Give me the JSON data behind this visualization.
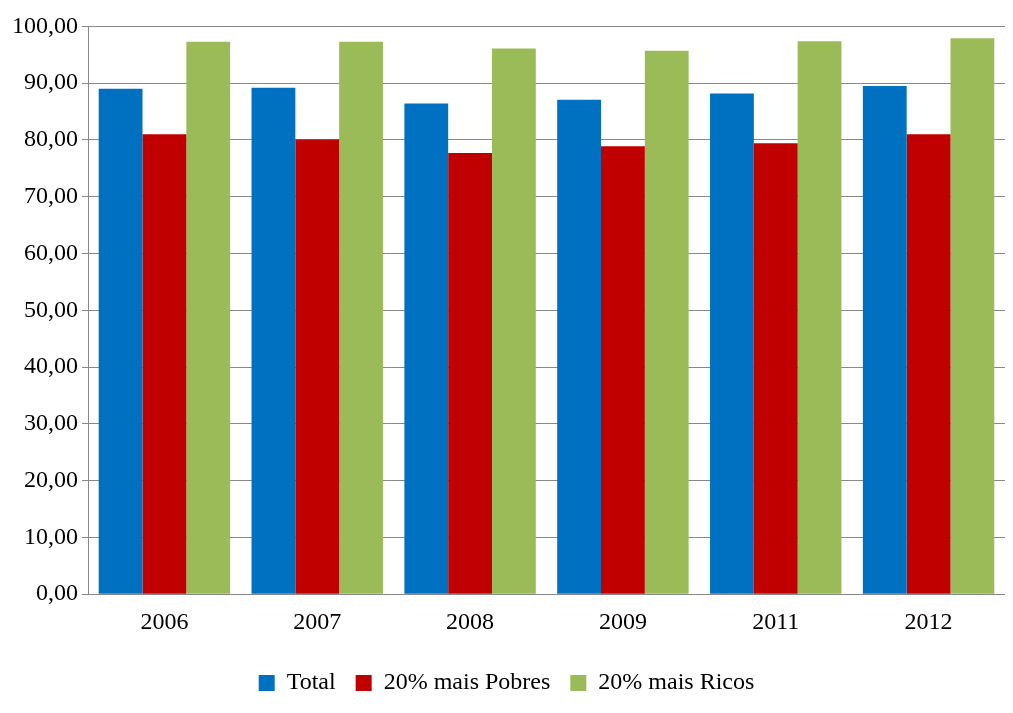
{
  "chart_data": {
    "type": "bar",
    "categories": [
      "2006",
      "2007",
      "2008",
      "2009",
      "2011",
      "2012"
    ],
    "series": [
      {
        "name": "Total",
        "color": "#0070c0",
        "values": [
          89.0,
          89.2,
          86.4,
          87.1,
          88.2,
          89.5
        ]
      },
      {
        "name": "20% mais Pobres",
        "color": "#c00000",
        "values": [
          81.0,
          80.1,
          77.7,
          78.9,
          79.4,
          81.0
        ]
      },
      {
        "name": "20% mais Ricos",
        "color": "#9bbb59",
        "values": [
          97.3,
          97.3,
          96.1,
          95.7,
          97.4,
          97.9
        ]
      }
    ],
    "ylim": [
      0,
      100
    ],
    "yticks": [
      {
        "value": 0,
        "label": "0,00"
      },
      {
        "value": 10,
        "label": "10,00"
      },
      {
        "value": 20,
        "label": "20,00"
      },
      {
        "value": 30,
        "label": "30,00"
      },
      {
        "value": 40,
        "label": "40,00"
      },
      {
        "value": 50,
        "label": "50,00"
      },
      {
        "value": 60,
        "label": "60,00"
      },
      {
        "value": 70,
        "label": "70,00"
      },
      {
        "value": 80,
        "label": "80,00"
      },
      {
        "value": 90,
        "label": "90,00"
      },
      {
        "value": 100,
        "label": "100,00"
      }
    ],
    "grid": "y",
    "legend": "bottom"
  }
}
